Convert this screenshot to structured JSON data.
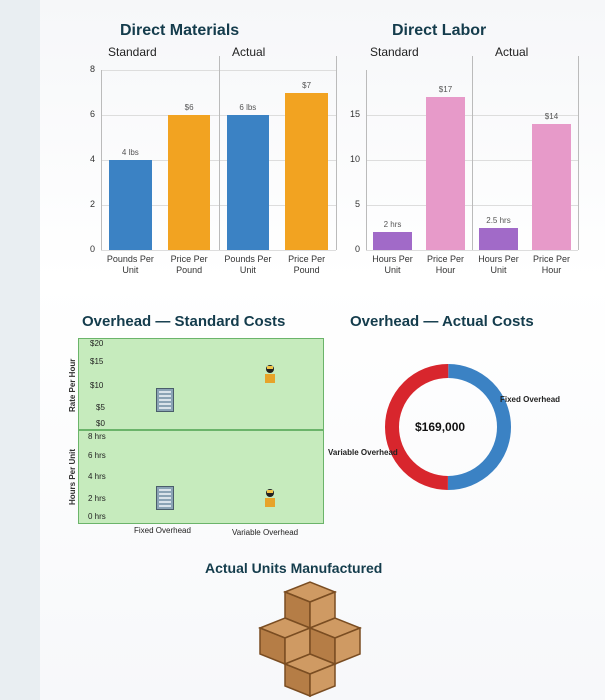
{
  "materials": {
    "title": "Direct Materials",
    "standard_label": "Standard",
    "actual_label": "Actual",
    "y_ticks": [
      "8",
      "6",
      "4",
      "2",
      "0"
    ],
    "categories": [
      "Pounds Per Unit",
      "Price Per Pound",
      "Pounds Per Unit",
      "Price Per Pound"
    ],
    "bar_labels": [
      "4 lbs",
      "$6",
      "6 lbs",
      "$7"
    ]
  },
  "labor": {
    "title": "Direct Labor",
    "standard_label": "Standard",
    "actual_label": "Actual",
    "y_ticks": [
      "15",
      "10",
      "5",
      "0"
    ],
    "categories": [
      "Hours Per Unit",
      "Price Per Hour",
      "Hours Per Unit",
      "Price Per Hour"
    ],
    "bar_labels": [
      "2 hrs",
      "$17",
      "2.5 hrs",
      "$14"
    ]
  },
  "overhead_standard": {
    "title": "Overhead — Standard Costs",
    "rate_axis_title": "Rate Per Hour",
    "rate_ticks": [
      "$20",
      "$15",
      "$10",
      "$5",
      "$0"
    ],
    "hours_axis_title": "Hours Per Unit",
    "hours_ticks": [
      "8 hrs",
      "6 hrs",
      "4 hrs",
      "2 hrs",
      "0 hrs"
    ],
    "x_labels": [
      "Fixed Overhead",
      "Variable Overhead"
    ]
  },
  "overhead_actual": {
    "title": "Overhead — Actual Costs",
    "center_value": "$169,000",
    "labels": [
      "Fixed Overhead",
      "Variable Overhead"
    ]
  },
  "units": {
    "title": "Actual Units Manufactured"
  },
  "colors": {
    "blue": "#3b82c4",
    "orange": "#f2a321",
    "pink": "#e79ac9",
    "purple": "#a16ac8",
    "red": "#d8262d",
    "green": "#c6ebbd"
  },
  "chart_data": [
    {
      "type": "bar",
      "title": "Direct Materials",
      "categories": [
        "Pounds Per Unit",
        "Price Per Pound",
        "Pounds Per Unit",
        "Price Per Pound"
      ],
      "groups": [
        "Standard",
        "Standard",
        "Actual",
        "Actual"
      ],
      "values": [
        4,
        6,
        6,
        7
      ],
      "data_labels": [
        "4 lbs",
        "$6",
        "6 lbs",
        "$7"
      ],
      "ylim": [
        0,
        8
      ]
    },
    {
      "type": "bar",
      "title": "Direct Labor",
      "categories": [
        "Hours Per Unit",
        "Price Per Hour",
        "Hours Per Unit",
        "Price Per Hour"
      ],
      "groups": [
        "Standard",
        "Standard",
        "Actual",
        "Actual"
      ],
      "values": [
        2,
        17,
        2.5,
        14
      ],
      "data_labels": [
        "2 hrs",
        "$17",
        "2.5 hrs",
        "$14"
      ],
      "ylim": [
        0,
        20
      ]
    },
    {
      "type": "pie",
      "title": "Overhead — Actual Costs",
      "labels": [
        "Fixed Overhead",
        "Variable Overhead"
      ],
      "values": [
        0.5,
        0.5
      ],
      "center_label": "$169,000"
    }
  ]
}
